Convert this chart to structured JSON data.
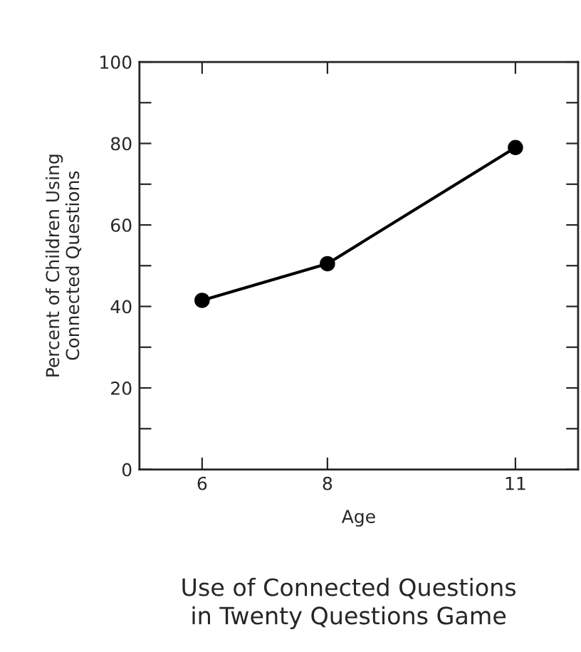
{
  "chart_data": {
    "type": "line",
    "title": "Use of Connected Questions\nin Twenty Questions Game",
    "xlabel": "Age",
    "ylabel": "Percent of Children Using\nConnected Questions",
    "x": [
      6,
      8,
      11
    ],
    "series": [
      {
        "color": "#000000",
        "values": [
          41.5,
          50.5,
          79
        ]
      }
    ],
    "xlim": [
      5,
      12
    ],
    "xticks": [
      6,
      8,
      11
    ],
    "ylim": [
      0,
      100
    ],
    "yticks": [
      0,
      {
        "value": 10,
        "label": null
      },
      20,
      {
        "value": 30,
        "label": null
      },
      40,
      {
        "value": 50,
        "label": null
      },
      60,
      {
        "value": 70,
        "label": null
      },
      80,
      {
        "value": 90,
        "label": null
      },
      100
    ],
    "marker": "circle",
    "line_style": "solid",
    "grid": false,
    "legend": false
  }
}
